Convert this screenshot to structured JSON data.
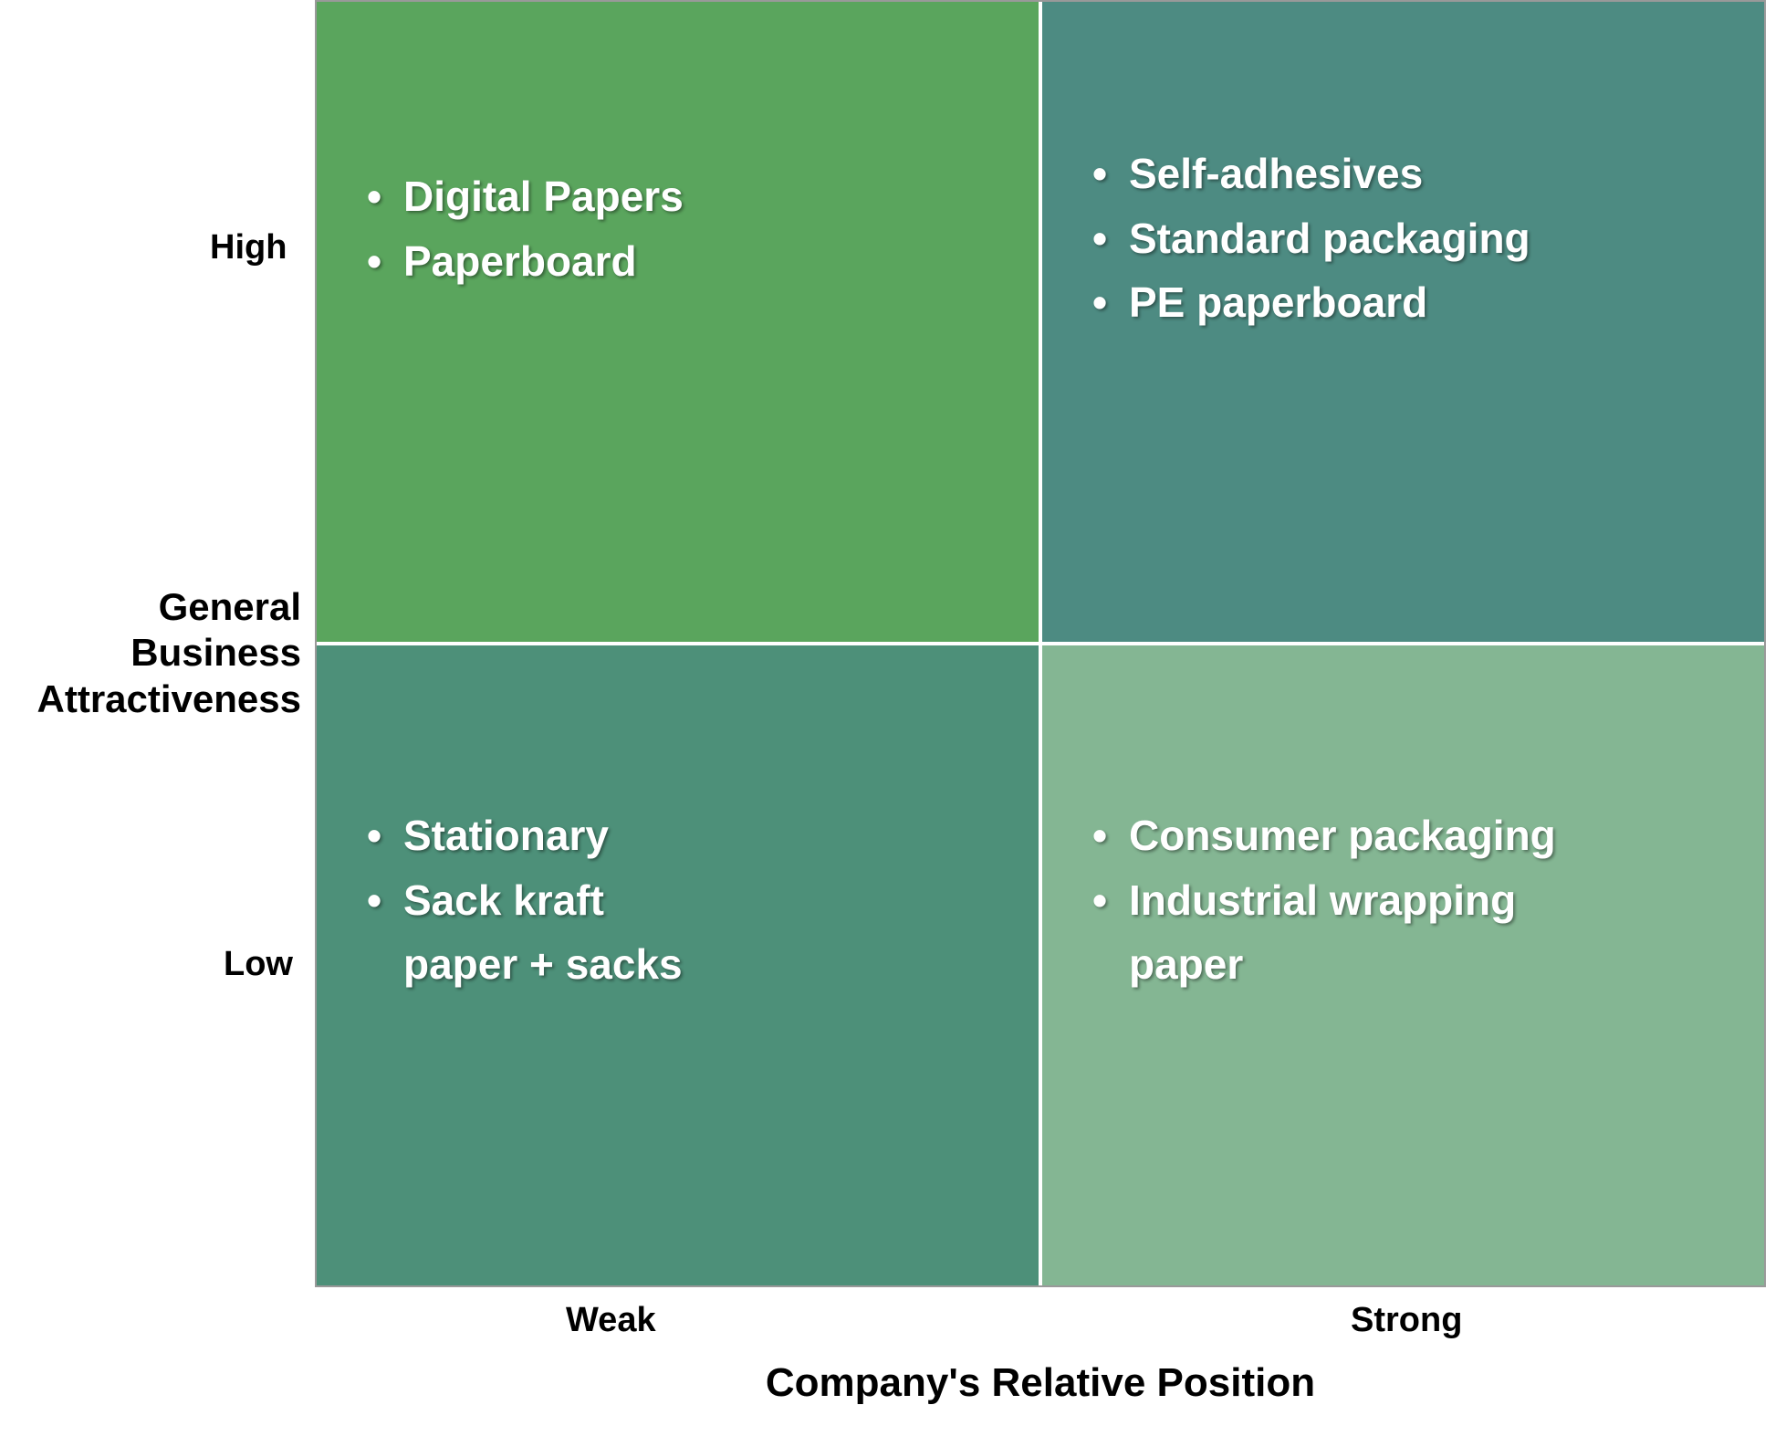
{
  "matrix": {
    "type": "2x2-matrix",
    "y_axis": {
      "title": "General Business Attractiveness",
      "high_label": "High",
      "low_label": "Low"
    },
    "x_axis": {
      "title": "Company's Relative Position",
      "weak_label": "Weak",
      "strong_label": "Strong"
    },
    "quadrants": {
      "top_left": {
        "background_color": "#5aa55d",
        "items": [
          "Digital Papers",
          "Paperboard"
        ]
      },
      "top_right": {
        "background_color": "#4d8b82",
        "items": [
          "Self-adhesives",
          " Standard packaging",
          "PE paperboard"
        ]
      },
      "bottom_left": {
        "background_color": "#4d9079",
        "items": [
          "Stationary",
          "Sack kraft paper + sacks"
        ]
      },
      "bottom_right": {
        "background_color": "#84b693",
        "items": [
          "Consumer packaging",
          "Industrial wrapping paper"
        ]
      }
    },
    "styling": {
      "text_color": "#ffffff",
      "label_color": "#000000",
      "item_fontsize": 46,
      "axis_title_fontsize": 44,
      "axis_label_fontsize": 38,
      "border_color": "#999999",
      "gap_color": "#ffffff",
      "text_shadow": "2px 2px 3px rgba(0,0,0,0.4)"
    }
  }
}
